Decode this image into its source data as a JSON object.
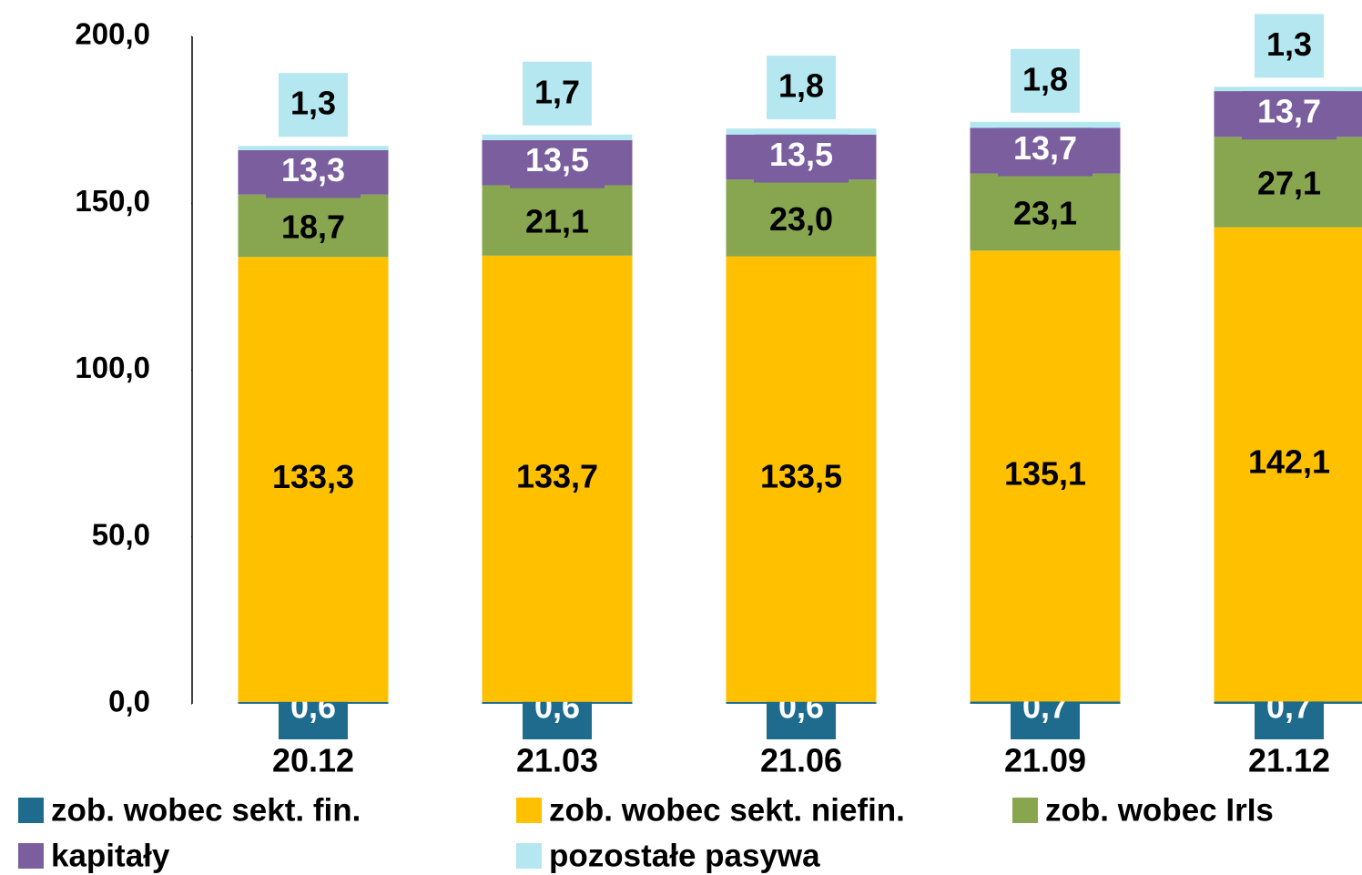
{
  "chart_data": {
    "type": "stacked-bar",
    "categories": [
      "20.12",
      "21.03",
      "21.06",
      "21.09",
      "21.12"
    ],
    "series": [
      {
        "name": "zob. wobec sekt. fin.",
        "color": "#1f6b8e",
        "values": [
          0.6,
          0.6,
          0.6,
          0.7,
          0.7
        ],
        "value_labels": [
          "0,6",
          "0,6",
          "0,6",
          "0,7",
          "0,7"
        ]
      },
      {
        "name": "zob. wobec sekt. niefin.",
        "color": "#ffc000",
        "values": [
          133.3,
          133.7,
          133.5,
          135.1,
          142.1
        ],
        "value_labels": [
          "133,3",
          "133,7",
          "133,5",
          "135,1",
          "142,1"
        ]
      },
      {
        "name": "zob. wobec IrIs",
        "color": "#88a650",
        "values": [
          18.7,
          21.1,
          23.0,
          23.1,
          27.1
        ],
        "value_labels": [
          "18,7",
          "21,1",
          "23,0",
          "23,1",
          "27,1"
        ]
      },
      {
        "name": "kapitały",
        "color": "#7a5e9e",
        "values": [
          13.3,
          13.5,
          13.5,
          13.7,
          13.7
        ],
        "value_labels": [
          "13,3",
          "13,5",
          "13,5",
          "13,7",
          "13,7"
        ]
      },
      {
        "name": "pozostałe pasywa",
        "color": "#b5e7f0",
        "values": [
          1.3,
          1.7,
          1.8,
          1.8,
          1.3
        ],
        "value_labels": [
          "1,3",
          "1,7",
          "1,8",
          "1,8",
          "1,3"
        ]
      }
    ],
    "ylim": [
      0,
      200
    ],
    "yticks": [
      {
        "value": 0,
        "label": "0,0"
      },
      {
        "value": 50,
        "label": "50,0"
      },
      {
        "value": 100,
        "label": "100,0"
      },
      {
        "value": 150,
        "label": "150,0"
      },
      {
        "value": 200,
        "label": "200,0"
      }
    ]
  }
}
